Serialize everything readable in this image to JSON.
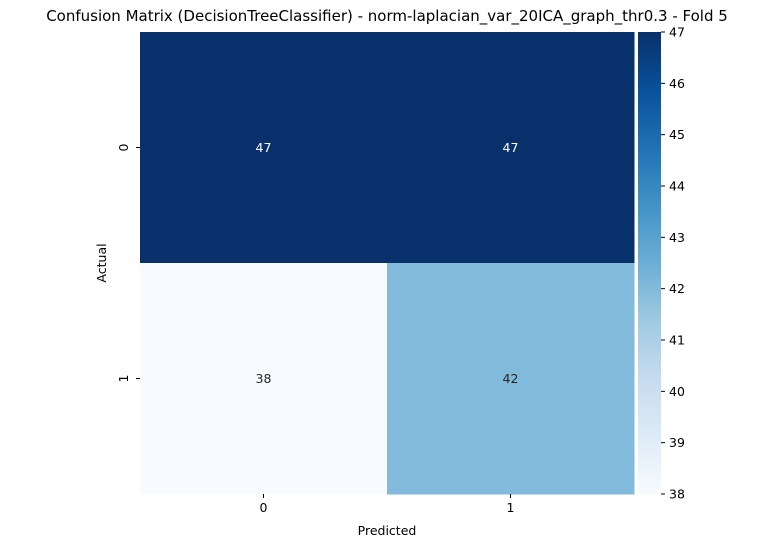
{
  "chart_data": {
    "type": "heatmap",
    "title": "Confusion Matrix (DecisionTreeClassifier) - norm-laplacian_var_20ICA_graph_thr0.3 - Fold 5",
    "xlabel": "Predicted",
    "ylabel": "Actual",
    "x_categories": [
      "0",
      "1"
    ],
    "y_categories": [
      "0",
      "1"
    ],
    "values": [
      [
        47,
        47
      ],
      [
        38,
        42
      ]
    ],
    "colormap": "Blues",
    "vmin": 38,
    "vmax": 47,
    "colorbar_ticks": [
      38,
      39,
      40,
      41,
      42,
      43,
      44,
      45,
      46,
      47
    ],
    "colorbar_tick_labels": [
      "38",
      "39",
      "40",
      "41",
      "42",
      "43",
      "44",
      "45",
      "46",
      "47"
    ],
    "grid": false,
    "legend": "colorbar-right"
  }
}
